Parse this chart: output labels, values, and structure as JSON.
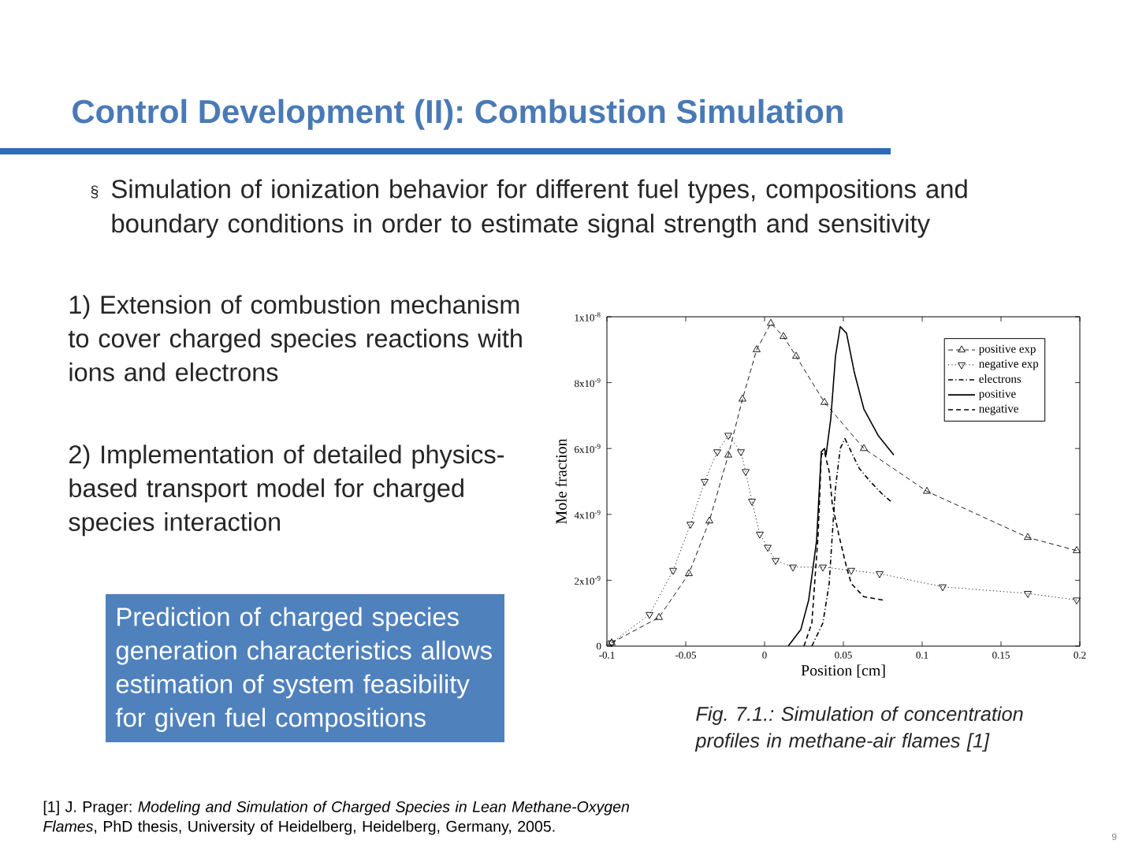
{
  "chart_data": {
    "type": "line",
    "title": "Control Development (II): Combustion Simulation",
    "xlabel": "Position [cm]",
    "ylabel": "Mole fraction",
    "xlim": [
      -0.1,
      0.2
    ],
    "xticks": [
      -0.1,
      -0.05,
      0,
      0.05,
      0.1,
      0.15,
      0.2
    ],
    "ylim": [
      0,
      1e-08
    ],
    "yticks": [
      {
        "value": 0,
        "label": "0"
      },
      {
        "value": 2e-09,
        "label": "2x10$^{-9}$"
      },
      {
        "value": 4e-09,
        "label": "4x10$^{-9}$"
      },
      {
        "value": 6e-09,
        "label": "6x10$^{-9}$"
      },
      {
        "value": 8e-09,
        "label": "8x10$^{-9}$"
      },
      {
        "value": 1e-08,
        "label": "1x10$^{-8}$"
      }
    ],
    "legend": "top right",
    "series": [
      {
        "name": "positive exp",
        "color": "#000000",
        "marker": "triangle",
        "line_style": "dashed",
        "x": [
          -0.097,
          -0.067,
          -0.048,
          -0.035,
          -0.023,
          -0.014,
          -0.005,
          0.004,
          0.012,
          0.02,
          0.038,
          0.063,
          0.103,
          0.167,
          0.198
        ],
        "values": [
          1e-10,
          8.7e-10,
          2.2e-09,
          3.8e-09,
          5.8e-09,
          7.5e-09,
          9e-09,
          9.8e-09,
          9.4e-09,
          8.8e-09,
          7.4e-09,
          6e-09,
          4.7e-09,
          3.3e-09,
          2.9e-09
        ]
      },
      {
        "name": "negative exp",
        "color": "#000000",
        "marker": "triangle-down",
        "line_style": "dotted",
        "x": [
          -0.097,
          -0.073,
          -0.058,
          -0.047,
          -0.038,
          -0.03,
          -0.023,
          -0.015,
          -0.012,
          -0.008,
          -0.003,
          0.002,
          0.007,
          0.018,
          0.037,
          0.055,
          0.073,
          0.113,
          0.167,
          0.198
        ],
        "values": [
          1e-10,
          9.6e-10,
          2.3e-09,
          3.7e-09,
          5e-09,
          5.9e-09,
          6.4e-09,
          5.9e-09,
          5.3e-09,
          4.4e-09,
          3.4e-09,
          3e-09,
          2.6e-09,
          2.4e-09,
          2.4e-09,
          2.3e-09,
          2.2e-09,
          1.8e-09,
          1.6e-09,
          1.4e-09
        ]
      },
      {
        "name": "electrons",
        "color": "#000000",
        "marker": "none",
        "line_style": "dashdot",
        "x": [
          0.03,
          0.037,
          0.041,
          0.043,
          0.045,
          0.048,
          0.051,
          0.055,
          0.06,
          0.067,
          0.075,
          0.08
        ],
        "values": [
          0,
          7e-10,
          1.9e-09,
          3.4e-09,
          4.8e-09,
          6e-09,
          6.3e-09,
          5.9e-09,
          5.4e-09,
          5e-09,
          4.6e-09,
          4.4e-09
        ]
      },
      {
        "name": "positive",
        "color": "#000000",
        "marker": "none",
        "line_style": "solid",
        "x": [
          0.015,
          0.023,
          0.028,
          0.033,
          0.036,
          0.038,
          0.039,
          0.042,
          0.045,
          0.048,
          0.052,
          0.057,
          0.063,
          0.072,
          0.082
        ],
        "values": [
          0,
          5e-10,
          1.4e-09,
          3.2e-09,
          5.9e-09,
          6e-09,
          5.8e-09,
          6.9e-09,
          8.8e-09,
          9.7e-09,
          9.5e-09,
          8.3e-09,
          7.2e-09,
          6.4e-09,
          5.8e-09
        ]
      },
      {
        "name": "negative",
        "color": "#000000",
        "marker": "none",
        "line_style": "dashed",
        "x": [
          0.025,
          0.03,
          0.034,
          0.036,
          0.038,
          0.041,
          0.043,
          0.047,
          0.052,
          0.055,
          0.063,
          0.075
        ],
        "values": [
          0,
          7e-10,
          3.4e-09,
          5.8e-09,
          5.9e-09,
          5.3e-09,
          4.3e-09,
          3.4e-09,
          2.4e-09,
          1.9e-09,
          1.5e-09,
          1.4e-09
        ]
      }
    ],
    "annotations": [
      "§",
      "Simulation of ionization behavior for different fuel types, compositions and boundary conditions in order to estimate signal strength and sensitivity",
      "1) Extension of combustion mechanism to cover charged species reactions with ions and electrons",
      "2) Implementation of detailed physics-based transport model for charged species interaction",
      "Prediction of charged species generation characteristics allows estimation of system feasibility for given fuel compositions",
      "Fig. 7.1.: Simulation of concentration profiles in methane-air flames [1]",
      "[1] J. Prager: *Modeling and Simulation of Charged Species in Lean Methane-Oxygen Flames*, PhD thesis, University of Heidelberg, Heidelberg, Germany, 2005.",
      "9"
    ]
  }
}
